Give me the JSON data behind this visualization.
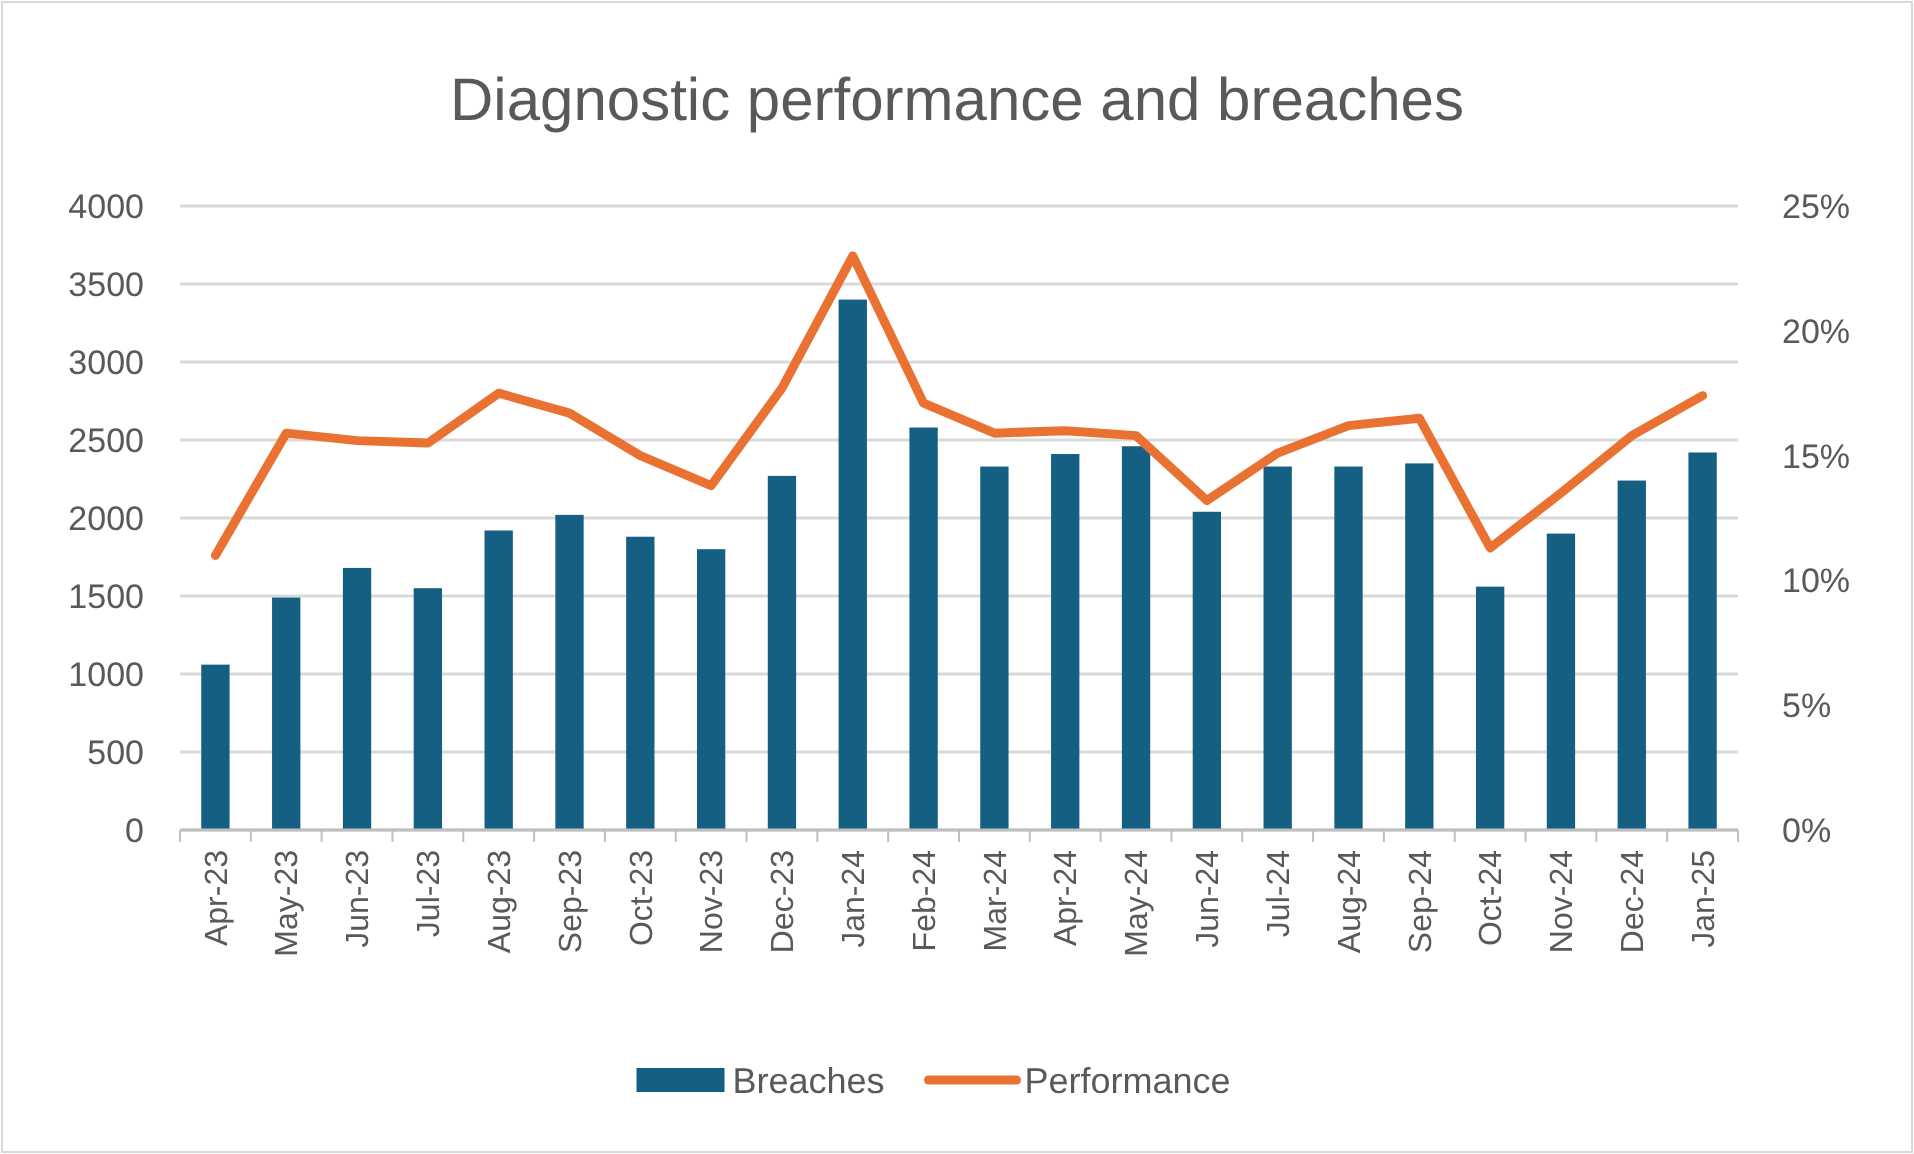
{
  "chart_data": {
    "type": "bar",
    "title": "Diagnostic performance and breaches",
    "categories": [
      "Apr-23",
      "May-23",
      "Jun-23",
      "Jul-23",
      "Aug-23",
      "Sep-23",
      "Oct-23",
      "Nov-23",
      "Dec-23",
      "Jan-24",
      "Feb-24",
      "Mar-24",
      "Apr-24",
      "May-24",
      "Jun-24",
      "Jul-24",
      "Aug-24",
      "Sep-24",
      "Oct-24",
      "Nov-24",
      "Dec-24",
      "Jan-25"
    ],
    "series": [
      {
        "name": "Breaches",
        "color": "#156082",
        "values": [
          1060,
          1490,
          1680,
          1550,
          1920,
          2020,
          1880,
          1800,
          2270,
          3400,
          2580,
          2330,
          2410,
          2460,
          2040,
          2330,
          2330,
          2350,
          1560,
          1900,
          2240,
          2420
        ]
      },
      {
        "name": "Performance",
        "type": "line",
        "axis": "y2",
        "color": "#e97132",
        "values": [
          11.0,
          15.9,
          15.6,
          15.5,
          17.5,
          16.7,
          15.0,
          13.8,
          17.7,
          23.0,
          17.1,
          15.9,
          16.0,
          15.8,
          13.2,
          15.1,
          16.2,
          16.5,
          11.3,
          13.5,
          15.8,
          17.4
        ]
      }
    ],
    "ylim": [
      0,
      4000
    ],
    "yticks": [
      0,
      500,
      1000,
      1500,
      2000,
      2500,
      3000,
      3500,
      4000
    ],
    "y2lim": [
      0,
      25
    ],
    "y2ticks": [
      {
        "value": 0,
        "label": "0%"
      },
      {
        "value": 5,
        "label": "5%"
      },
      {
        "value": 10,
        "label": "10%"
      },
      {
        "value": 15,
        "label": "15%"
      },
      {
        "value": 20,
        "label": "20%"
      },
      {
        "value": 25,
        "label": "25%"
      }
    ],
    "grid": "y",
    "legend": "bottom",
    "marker": "none",
    "line_style": "solid"
  }
}
